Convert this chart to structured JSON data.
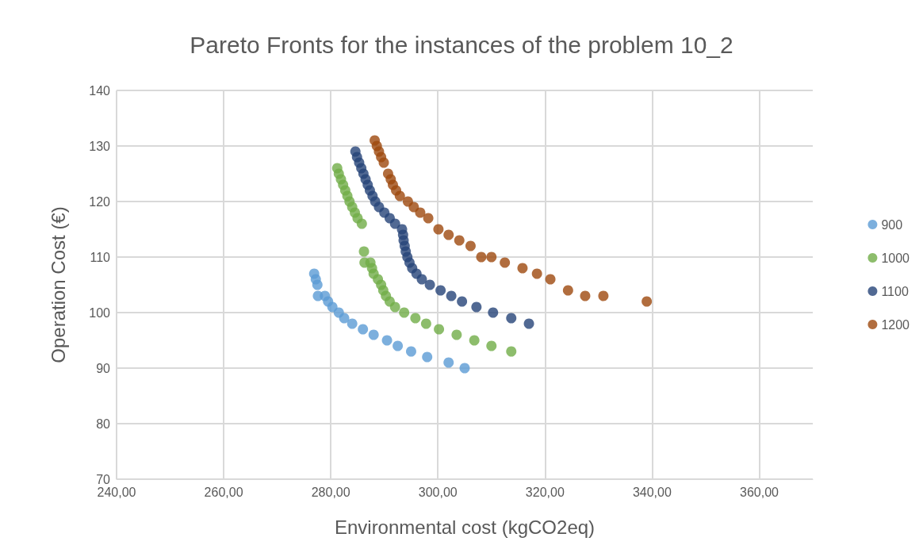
{
  "chart_data": {
    "type": "scatter",
    "title": "Pareto Fronts for the instances of the problem 10_2",
    "xlabel": "Environmental cost (kgCO2eq)",
    "ylabel": "Operation Cost (€)",
    "xlim": [
      240,
      370
    ],
    "xticks": [
      {
        "value": 240,
        "label": "240,00"
      },
      {
        "value": 260,
        "label": "260,00"
      },
      {
        "value": 280,
        "label": "280,00"
      },
      {
        "value": 300,
        "label": "300,00"
      },
      {
        "value": 320,
        "label": "320,00"
      },
      {
        "value": 340,
        "label": "340,00"
      },
      {
        "value": 360,
        "label": "360,00"
      }
    ],
    "ylim": [
      70,
      140
    ],
    "yticks": [
      70,
      80,
      90,
      100,
      110,
      120,
      130,
      140
    ],
    "grid": true,
    "legend": "right",
    "marker": "circle",
    "series": [
      {
        "name": "900",
        "color": "#5b9bd5",
        "x": [
          276.9,
          277.2,
          277.5,
          277.6,
          278.9,
          279.5,
          280.3,
          281.5,
          282.5,
          284,
          286,
          288,
          290.5,
          292.5,
          295,
          298,
          302,
          305
        ],
        "values": [
          107,
          106,
          105,
          103,
          103,
          102,
          101,
          100,
          99,
          98,
          97,
          96,
          95,
          94,
          93,
          92,
          91,
          90
        ]
      },
      {
        "name": "1000",
        "color": "#70ad47",
        "x": [
          281.2,
          281.5,
          281.9,
          282.3,
          282.7,
          283.1,
          283.5,
          284,
          284.5,
          285,
          285.8,
          286.2,
          286.3,
          287.4,
          287.7,
          288,
          288.8,
          289.4,
          289.8,
          290.3,
          291,
          292,
          293.7,
          295.8,
          297.8,
          300.2,
          303.5,
          306.8,
          310,
          313.7
        ],
        "values": [
          126,
          125,
          124,
          123,
          122,
          121,
          120,
          119,
          118,
          117,
          116,
          111,
          109,
          109,
          108,
          107,
          106,
          105,
          104,
          103,
          102,
          101,
          100,
          99,
          98,
          97,
          96,
          95,
          94,
          93
        ]
      },
      {
        "name": "1100",
        "color": "#264478",
        "x": [
          284.6,
          284.9,
          285.3,
          285.7,
          286.1,
          286.5,
          286.9,
          287.3,
          287.8,
          288.3,
          289,
          290,
          291,
          292,
          293.3,
          293.5,
          293.6,
          293.8,
          294,
          294.3,
          294.7,
          295.2,
          296,
          297,
          298.5,
          300.5,
          302.5,
          304.5,
          307.2,
          310.3,
          313.7,
          317
        ],
        "values": [
          129,
          128,
          127,
          126,
          125,
          124,
          123,
          122,
          121,
          120,
          119,
          118,
          117,
          116,
          115,
          114,
          113,
          112,
          111,
          110,
          109,
          108,
          107,
          106,
          105,
          104,
          103,
          102,
          101,
          100,
          99,
          98
        ]
      },
      {
        "name": "1200",
        "color": "#9e480e",
        "x": [
          288.2,
          288.6,
          289,
          289.4,
          289.9,
          290.7,
          291.2,
          291.6,
          292.2,
          292.9,
          294.4,
          295.5,
          296.7,
          298.2,
          300.1,
          302,
          304,
          306.1,
          308.1,
          310,
          312.5,
          315.8,
          318.5,
          321,
          324.3,
          327.5,
          330.9,
          339
        ],
        "values": [
          131,
          130,
          129,
          128,
          127,
          125,
          124,
          123,
          122,
          121,
          120,
          119,
          118,
          117,
          115,
          114,
          113,
          112,
          110,
          110,
          109,
          108,
          107,
          106,
          104,
          103,
          103,
          102
        ]
      }
    ]
  }
}
